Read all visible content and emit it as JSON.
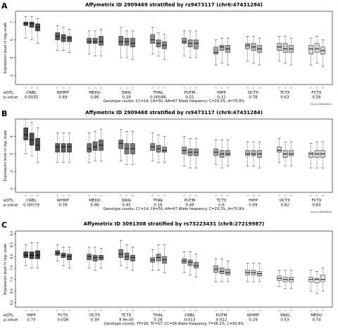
{
  "figure": {
    "source_label": "Source:BRAINEAC",
    "eqtl_row_label": "eQTL",
    "pvalue_row_label": "p-value",
    "genotype_tick_labels": [
      "CC",
      "CA",
      "AA"
    ]
  },
  "chart_data": [
    {
      "type": "box",
      "panel_letter": "A",
      "title": "Affymetrix ID 2909469 stratified by rs9473117 (chr6:47431284)",
      "ylabel": "Expression level in log₂ scale",
      "ylim": [
        3.5,
        7.6
      ],
      "yticks": [
        "4",
        "5",
        "6",
        "7"
      ],
      "categories": [
        "CRBL",
        "WHMT",
        "MEDU",
        "SNIG",
        "THAL",
        "PUTM",
        "HIPP",
        "OCTX",
        "TCTX",
        "FCTX"
      ],
      "eqtl_pvalues": [
        "0.0035",
        "0.69",
        "0.86",
        "0.19",
        "0.00046",
        "0.51",
        "0.12",
        "0.78",
        "0.63",
        "0.58"
      ],
      "footer": "Genotype counts: CC=14; CA=50; AA=67   Allele frequency: C=29.1%, A=70.9%",
      "boxes": [
        [
          [
            6.1,
            6.8,
            6.9,
            7.0,
            7.3
          ],
          [
            6.0,
            6.7,
            6.9,
            7.0,
            7.3
          ],
          [
            5.8,
            6.5,
            6.7,
            6.9,
            7.2
          ]
        ],
        [
          [
            5.4,
            6.0,
            6.2,
            6.4,
            6.8
          ],
          [
            5.4,
            5.9,
            6.1,
            6.3,
            6.7
          ],
          [
            5.3,
            5.9,
            6.1,
            6.2,
            6.6
          ]
        ],
        [
          [
            5.2,
            5.8,
            5.9,
            6.1,
            6.5
          ],
          [
            5.1,
            5.8,
            5.9,
            6.1,
            6.5
          ],
          [
            5.1,
            5.7,
            5.9,
            6.2,
            6.6
          ]
        ],
        [
          [
            5.0,
            5.7,
            5.9,
            6.2,
            6.7
          ],
          [
            5.0,
            5.7,
            5.9,
            6.1,
            6.5
          ],
          [
            4.9,
            5.6,
            5.8,
            6.1,
            6.5
          ]
        ],
        [
          [
            5.2,
            5.8,
            6.0,
            6.3,
            6.7
          ],
          [
            5.1,
            5.6,
            5.8,
            6.0,
            6.4
          ],
          [
            4.9,
            5.5,
            5.7,
            5.9,
            6.3
          ]
        ],
        [
          [
            5.1,
            5.8,
            5.9,
            6.1,
            6.5
          ],
          [
            5.0,
            5.6,
            5.8,
            6.0,
            6.5
          ],
          [
            5.0,
            5.5,
            5.8,
            6.0,
            6.5
          ]
        ],
        [
          [
            4.6,
            5.2,
            5.3,
            5.6,
            6.0
          ],
          [
            4.7,
            5.4,
            5.6,
            5.7,
            6.1
          ],
          [
            4.6,
            5.3,
            5.5,
            5.7,
            6.1
          ]
        ],
        [
          [
            4.8,
            5.5,
            5.7,
            5.8,
            6.2
          ],
          [
            4.7,
            5.4,
            5.6,
            5.8,
            6.2
          ],
          [
            4.6,
            5.3,
            5.5,
            5.7,
            6.1
          ]
        ],
        [
          [
            4.8,
            5.4,
            5.6,
            5.8,
            6.2
          ],
          [
            4.7,
            5.3,
            5.5,
            5.8,
            6.2
          ],
          [
            4.6,
            5.3,
            5.5,
            5.7,
            6.1
          ]
        ],
        [
          [
            4.6,
            5.2,
            5.5,
            5.7,
            6.1
          ],
          [
            4.7,
            5.3,
            5.5,
            5.8,
            6.2
          ],
          [
            4.5,
            5.2,
            5.4,
            5.6,
            6.0
          ]
        ]
      ],
      "shades": [
        "#4d4d4d",
        "#5c5c5c",
        "#6b6b6b",
        "#7a7a7a",
        "#898989",
        "#989898",
        "#a7a7a7",
        "#b6b6b6",
        "#c5c5c5",
        "#d4d4d4"
      ]
    },
    {
      "type": "box",
      "panel_letter": "B",
      "title": "Affymetrix ID 2909468 stratified by rs9473117 (chr6:47431284)",
      "ylabel": "Expression level in log₂ scale",
      "ylim": [
        2.8,
        7.0
      ],
      "yticks": [
        "3",
        "4",
        "5",
        "6"
      ],
      "categories": [
        "CRBL",
        "WHMT",
        "MEDU",
        "SNIG",
        "THAL",
        "PUTM",
        "TCTX",
        "HIPP",
        "OCTX",
        "FCTX"
      ],
      "eqtl_pvalues": [
        "0.00079",
        "0.76",
        "0.98",
        "0.45",
        "0.16",
        "0.49",
        "0.6",
        "0.69",
        "0.82",
        "0.83"
      ],
      "footer": "Genotype counts: CC=14; CA=50; AA=67   Allele frequency: C=29.1%, A=70.9%",
      "boxes": [
        [
          [
            5.0,
            5.8,
            6.1,
            6.5,
            7.0
          ],
          [
            4.9,
            5.5,
            5.8,
            6.2,
            6.8
          ],
          [
            4.5,
            5.2,
            5.5,
            5.9,
            6.5
          ]
        ],
        [
          [
            4.5,
            5.1,
            5.4,
            5.6,
            6.2
          ],
          [
            4.5,
            5.1,
            5.4,
            5.6,
            6.2
          ],
          [
            4.5,
            5.1,
            5.4,
            5.6,
            6.2
          ]
        ],
        [
          [
            4.5,
            5.1,
            5.3,
            5.6,
            6.2
          ],
          [
            4.6,
            5.2,
            5.4,
            5.7,
            6.3
          ],
          [
            4.6,
            5.2,
            5.5,
            5.8,
            6.4
          ]
        ],
        [
          [
            4.6,
            5.3,
            5.6,
            5.8,
            6.4
          ],
          [
            4.4,
            5.0,
            5.3,
            5.6,
            6.3
          ],
          [
            4.4,
            5.0,
            5.3,
            5.6,
            6.3
          ]
        ],
        [
          [
            4.6,
            5.2,
            5.4,
            5.6,
            6.2
          ],
          [
            4.5,
            5.1,
            5.3,
            5.5,
            6.1
          ],
          [
            4.5,
            5.1,
            5.2,
            5.4,
            6.0
          ]
        ],
        [
          [
            4.3,
            5.0,
            5.2,
            5.4,
            6.0
          ],
          [
            4.2,
            4.9,
            5.1,
            5.3,
            5.9
          ],
          [
            4.2,
            4.9,
            5.1,
            5.3,
            5.9
          ]
        ],
        [
          [
            4.4,
            4.9,
            5.1,
            5.3,
            5.8
          ],
          [
            4.2,
            4.8,
            5.0,
            5.2,
            5.8
          ],
          [
            4.3,
            4.9,
            5.0,
            5.2,
            5.8
          ]
        ],
        [
          [
            4.3,
            4.9,
            5.0,
            5.2,
            5.7
          ],
          [
            4.3,
            4.9,
            5.0,
            5.2,
            5.7
          ],
          [
            4.2,
            4.8,
            5.0,
            5.2,
            5.7
          ]
        ],
        [
          [
            4.5,
            5.1,
            5.2,
            5.4,
            5.9
          ],
          [
            4.3,
            4.8,
            5.0,
            5.2,
            5.7
          ],
          [
            4.3,
            4.9,
            5.0,
            5.2,
            5.7
          ]
        ],
        [
          [
            4.2,
            4.8,
            5.0,
            5.1,
            5.6
          ],
          [
            4.2,
            4.8,
            5.0,
            5.2,
            5.7
          ],
          [
            4.2,
            4.8,
            5.0,
            5.2,
            5.7
          ]
        ]
      ],
      "shades": [
        "#4d4d4d",
        "#5c5c5c",
        "#6b6b6b",
        "#7a7a7a",
        "#898989",
        "#989898",
        "#a7a7a7",
        "#b6b6b6",
        "#c5c5c5",
        "#d4d4d4"
      ]
    },
    {
      "type": "box",
      "panel_letter": "C",
      "title": "Affymetrix ID 3091308 stratified by rs73223431 (chr8:27219987)",
      "ylabel": "Expression level in log₂ scale",
      "ylim": [
        5.8,
        9.1
      ],
      "yticks": [
        "6.0",
        "6.5",
        "7.0",
        "7.5",
        "8.0",
        "8.5",
        "9.0"
      ],
      "categories": [
        "HIPP",
        "FCTX",
        "OCTX",
        "TCTX",
        "THAL",
        "CRBL",
        "PUTM",
        "WHMT",
        "SNIG",
        "MEDU"
      ],
      "eqtl_pvalues": [
        "0.75",
        "0.038",
        "0.39",
        "9.9e-05",
        "0.28",
        "0.013",
        "0.012",
        "0.29",
        "0.53",
        "0.74"
      ],
      "footer": "Genotype counts: TT=20; TC=57; CC=56   Allele frequency: T=36.2%; C=63.8%",
      "boxes": [
        [
          [
            7.6,
            7.95,
            8.05,
            8.2,
            8.5
          ],
          [
            7.5,
            7.9,
            8.05,
            8.2,
            8.6
          ],
          [
            7.5,
            7.9,
            8.05,
            8.25,
            8.6
          ]
        ],
        [
          [
            7.8,
            8.05,
            8.15,
            8.25,
            8.5
          ],
          [
            7.6,
            7.95,
            8.05,
            8.15,
            8.4
          ],
          [
            7.5,
            7.85,
            8.0,
            8.1,
            8.4
          ]
        ],
        [
          [
            7.5,
            7.85,
            8.0,
            8.1,
            8.4
          ],
          [
            7.4,
            7.8,
            7.95,
            8.05,
            8.4
          ],
          [
            7.5,
            7.85,
            7.95,
            8.05,
            8.35
          ]
        ],
        [
          [
            7.6,
            7.95,
            8.1,
            8.3,
            8.7
          ],
          [
            7.5,
            7.85,
            8.0,
            8.15,
            8.5
          ],
          [
            7.4,
            7.8,
            7.95,
            8.05,
            8.4
          ]
        ],
        [
          [
            7.4,
            7.75,
            7.85,
            7.95,
            8.3
          ],
          [
            7.4,
            7.8,
            7.95,
            8.1,
            8.5
          ],
          [
            7.3,
            7.7,
            7.85,
            8.0,
            8.5
          ]
        ],
        [
          [
            7.3,
            7.7,
            7.8,
            7.9,
            8.2
          ],
          [
            7.2,
            7.6,
            7.75,
            7.85,
            8.2
          ],
          [
            7.1,
            7.5,
            7.6,
            7.75,
            8.1
          ]
        ],
        [
          [
            6.9,
            7.3,
            7.45,
            7.6,
            7.9
          ],
          [
            6.9,
            7.25,
            7.35,
            7.5,
            7.9
          ],
          [
            6.9,
            7.2,
            7.3,
            7.45,
            7.8
          ]
        ],
        [
          [
            6.9,
            7.2,
            7.3,
            7.4,
            7.7
          ],
          [
            6.9,
            7.2,
            7.3,
            7.4,
            7.7
          ],
          [
            6.9,
            7.15,
            7.25,
            7.35,
            7.7
          ]
        ],
        [
          [
            6.7,
            6.95,
            7.05,
            7.15,
            7.4
          ],
          [
            6.6,
            6.9,
            7.0,
            7.1,
            7.4
          ],
          [
            6.6,
            6.9,
            7.0,
            7.1,
            7.4
          ]
        ],
        [
          [
            6.5,
            6.9,
            7.0,
            7.1,
            7.4
          ],
          [
            6.4,
            6.85,
            7.0,
            7.05,
            7.35
          ],
          [
            6.5,
            6.9,
            7.0,
            7.2,
            7.5
          ]
        ]
      ],
      "shades": [
        "#3f3f3f",
        "#5a5a5a",
        "#6e6e6e",
        "#7a7a7a",
        "#8e8e8e",
        "#9a9a9a",
        "#b6b6b6",
        "#cccccc",
        "#dddddd",
        "#e8e8e8"
      ]
    }
  ]
}
